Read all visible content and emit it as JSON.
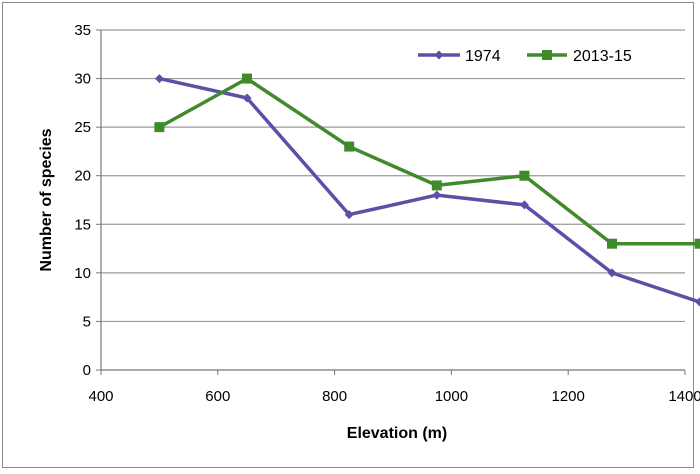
{
  "chart_data": {
    "type": "line",
    "title": "",
    "xlabel": "Elevation (m)",
    "ylabel": "Number of species",
    "xlim": [
      400,
      1400
    ],
    "ylim": [
      0,
      35
    ],
    "x_ticks": [
      400,
      600,
      800,
      1000,
      1200,
      1400
    ],
    "y_ticks": [
      0,
      5,
      10,
      15,
      20,
      25,
      30,
      35
    ],
    "grid": "horizontal",
    "legend_position": "top-right",
    "series": [
      {
        "name": "1974",
        "color": "#5b50a8",
        "marker": "diamond",
        "x": [
          500,
          650,
          825,
          975,
          1125,
          1275,
          1425
        ],
        "y": [
          30,
          28,
          16,
          18,
          17,
          10,
          7
        ]
      },
      {
        "name": "2013-15",
        "color": "#3f8a2a",
        "marker": "square",
        "x": [
          500,
          650,
          825,
          975,
          1125,
          1275,
          1425
        ],
        "y": [
          25,
          30,
          23,
          19,
          20,
          13,
          13
        ]
      }
    ]
  }
}
